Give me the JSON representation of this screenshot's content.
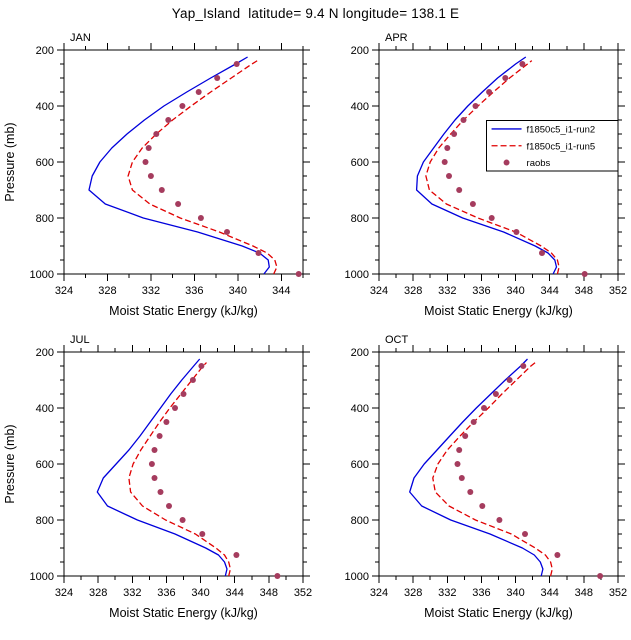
{
  "title": "Yap_Island  latitude= 9.4 N longitude= 138.1 E",
  "chart_data": {
    "type": "line",
    "xlabel": "Moist Static Energy (kJ/kg)",
    "ylabel": "Pressure (mb)",
    "y_range": [
      200,
      1000
    ],
    "y_ticks": [
      200,
      400,
      600,
      800,
      1000
    ],
    "y_minor_step": 50,
    "x_minor_step": 2,
    "legend_panel": "APR",
    "series_styles": [
      {
        "key": "run2",
        "label": "f1850c5_i1-run2",
        "color": "#0000dc",
        "style": "solid"
      },
      {
        "key": "run5",
        "label": "f1850c5_i1-run5",
        "color": "#e00000",
        "style": "dashed"
      },
      {
        "key": "raobs",
        "label": "raobs",
        "color": "#a53c5e",
        "style": "dots"
      }
    ],
    "panels": [
      {
        "label": "JAN",
        "xlim": [
          324,
          346
        ],
        "xticks": [
          324,
          328,
          332,
          336,
          340,
          344
        ],
        "show_ylabel": true,
        "series": {
          "run2": {
            "pressure": [
              1000,
              975,
              950,
              925,
              900,
              850,
              800,
              750,
              700,
              650,
              600,
              550,
              500,
              450,
              400,
              350,
              300,
              250,
              225
            ],
            "mse": [
              342.4,
              342.9,
              342.8,
              342.0,
              340.4,
              336.3,
              331.3,
              327.8,
              326.3,
              326.6,
              327.3,
              328.4,
              329.8,
              331.4,
              333.2,
              335.3,
              337.5,
              339.8,
              340.9
            ]
          },
          "run5": {
            "pressure": [
              1000,
              975,
              950,
              925,
              900,
              850,
              800,
              750,
              700,
              650,
              600,
              550,
              500,
              450,
              400,
              350,
              300,
              250,
              238
            ],
            "mse": [
              343.3,
              343.6,
              343.4,
              342.7,
              341.4,
              338.3,
              334.7,
              331.9,
              330.3,
              329.9,
              330.3,
              331.2,
              332.5,
              334.0,
              335.7,
              337.5,
              339.4,
              341.3,
              341.8
            ]
          },
          "raobs": {
            "pressure": [
              1000,
              925,
              850,
              800,
              750,
              700,
              650,
              600,
              550,
              500,
              450,
              400,
              350,
              300,
              250
            ],
            "mse": [
              345.6,
              341.9,
              339.0,
              336.6,
              334.5,
              333.0,
              332.0,
              331.5,
              331.8,
              332.5,
              333.6,
              334.9,
              336.4,
              338.1,
              339.9
            ]
          }
        }
      },
      {
        "label": "APR",
        "xlim": [
          324,
          352
        ],
        "xticks": [
          324,
          328,
          332,
          336,
          340,
          344,
          348,
          352
        ],
        "show_ylabel": false,
        "series": {
          "run2": {
            "pressure": [
              1000,
              975,
              950,
              925,
              900,
              850,
              800,
              750,
              700,
              650,
              600,
              550,
              500,
              450,
              400,
              350,
              300,
              250,
              225
            ],
            "mse": [
              344.4,
              344.8,
              344.6,
              343.8,
              342.3,
              338.6,
              333.8,
              330.2,
              328.4,
              328.5,
              329.2,
              330.4,
              331.6,
              332.9,
              334.4,
              336.1,
              337.9,
              340.0,
              341.2
            ]
          },
          "run5": {
            "pressure": [
              1000,
              975,
              950,
              925,
              900,
              850,
              800,
              750,
              700,
              650,
              600,
              550,
              500,
              450,
              400,
              350,
              300,
              250,
              238
            ],
            "mse": [
              344.9,
              345.1,
              344.9,
              344.2,
              343.0,
              340.0,
              335.6,
              331.9,
              329.9,
              329.5,
              330.0,
              331.0,
              332.4,
              333.9,
              335.6,
              337.4,
              339.3,
              341.4,
              341.9
            ]
          },
          "raobs": {
            "pressure": [
              1000,
              925,
              850,
              800,
              750,
              700,
              650,
              600,
              550,
              500,
              450,
              400,
              350,
              300,
              250
            ],
            "mse": [
              348.1,
              343.1,
              340.1,
              337.2,
              335.0,
              333.4,
              332.2,
              331.7,
              332.0,
              332.8,
              333.9,
              335.3,
              336.9,
              338.8,
              340.8
            ]
          }
        }
      },
      {
        "label": "JUL",
        "xlim": [
          324,
          352
        ],
        "xticks": [
          324,
          328,
          332,
          336,
          340,
          344,
          348,
          352
        ],
        "show_ylabel": true,
        "series": {
          "run2": {
            "pressure": [
              1000,
              975,
              950,
              925,
              900,
              850,
              800,
              750,
              700,
              650,
              600,
              550,
              500,
              450,
              400,
              350,
              300,
              250,
              225
            ],
            "mse": [
              342.9,
              343.1,
              342.8,
              342.1,
              340.6,
              337.0,
              332.6,
              329.1,
              327.9,
              328.6,
              330.1,
              331.6,
              332.9,
              334.1,
              335.3,
              336.5,
              337.8,
              339.2,
              339.9
            ]
          },
          "run5": {
            "pressure": [
              1000,
              975,
              950,
              925,
              900,
              850,
              800,
              750,
              700,
              650,
              600,
              550,
              500,
              450,
              400,
              350,
              300,
              250,
              238
            ],
            "mse": [
              343.3,
              343.5,
              343.3,
              342.8,
              341.8,
              339.4,
              335.9,
              333.2,
              331.8,
              331.6,
              332.1,
              333.0,
              334.1,
              335.2,
              336.4,
              337.7,
              339.0,
              340.3,
              340.7
            ]
          },
          "raobs": {
            "pressure": [
              1000,
              925,
              850,
              800,
              750,
              700,
              650,
              600,
              550,
              500,
              450,
              400,
              350,
              300,
              250
            ],
            "mse": [
              349.0,
              344.2,
              340.2,
              337.9,
              336.3,
              335.3,
              334.6,
              334.3,
              334.6,
              335.2,
              336.0,
              337.0,
              338.0,
              339.1,
              340.1
            ]
          }
        }
      },
      {
        "label": "OCT",
        "xlim": [
          324,
          352
        ],
        "xticks": [
          324,
          328,
          332,
          336,
          340,
          344,
          348,
          352
        ],
        "show_ylabel": false,
        "series": {
          "run2": {
            "pressure": [
              1000,
              975,
              950,
              925,
              900,
              850,
              800,
              750,
              700,
              650,
              600,
              550,
              500,
              450,
              400,
              350,
              300,
              250,
              225
            ],
            "mse": [
              343.0,
              343.2,
              342.9,
              342.2,
              340.8,
              337.0,
              332.4,
              329.0,
              327.6,
              328.1,
              329.3,
              330.8,
              332.3,
              333.8,
              335.4,
              337.1,
              338.8,
              340.6,
              341.4
            ]
          },
          "run5": {
            "pressure": [
              1000,
              975,
              950,
              925,
              900,
              850,
              800,
              750,
              700,
              650,
              600,
              550,
              500,
              450,
              400,
              350,
              300,
              250,
              238
            ],
            "mse": [
              344.1,
              344.3,
              344.1,
              343.5,
              342.3,
              339.5,
              335.3,
              332.2,
              330.6,
              330.3,
              330.9,
              332.0,
              333.5,
              335.1,
              336.8,
              338.4,
              340.1,
              341.8,
              342.3
            ]
          },
          "raobs": {
            "pressure": [
              1000,
              925,
              850,
              800,
              750,
              700,
              650,
              600,
              550,
              500,
              450,
              400,
              350,
              300,
              250
            ],
            "mse": [
              349.9,
              344.9,
              341.1,
              338.1,
              336.1,
              334.7,
              333.7,
              333.2,
              333.4,
              334.1,
              335.1,
              336.3,
              337.7,
              339.3,
              340.9
            ]
          }
        }
      }
    ]
  }
}
